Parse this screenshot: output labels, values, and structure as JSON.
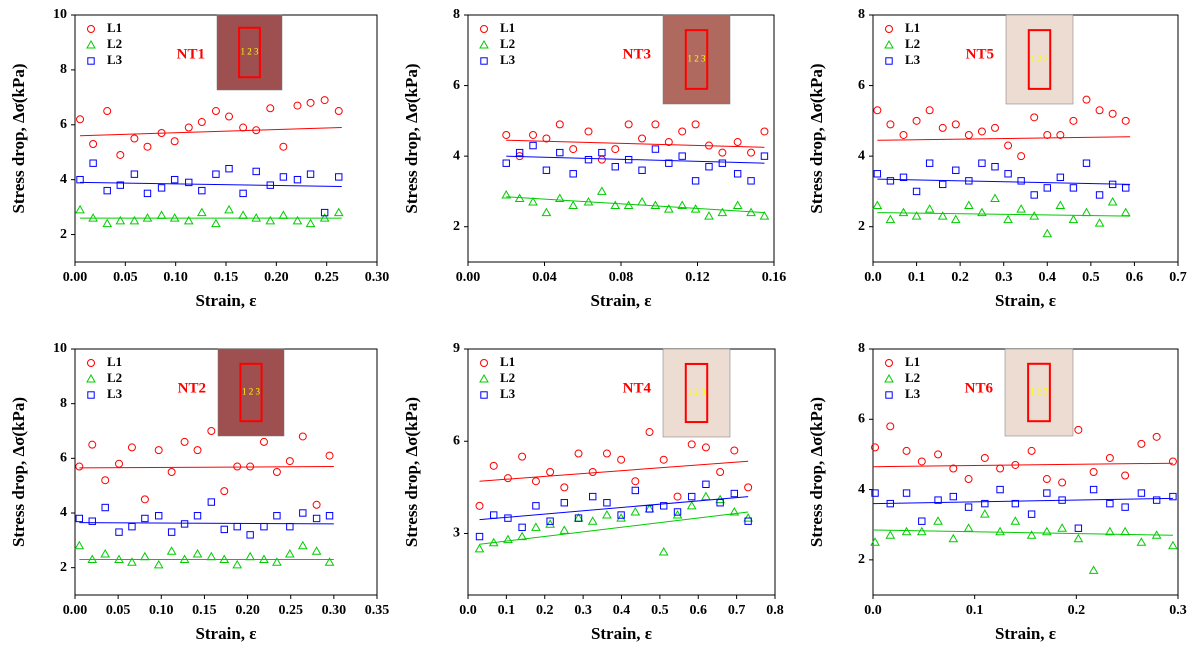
{
  "chart_data": [
    {
      "type": "scatter",
      "annotation": "NT1",
      "inset_label": "1 2 3",
      "inset_color": "#9e4f4f",
      "x_label": "Strain, ε",
      "y_label": "Stress drop, Δσ(kPa)",
      "xlim": [
        0,
        0.3
      ],
      "ylim": [
        1,
        10
      ],
      "xticks": [
        {
          "value": 0,
          "label": "0.00"
        },
        {
          "value": 0.05,
          "label": "0.05"
        },
        {
          "value": 0.1,
          "label": "0.10"
        },
        {
          "value": 0.15,
          "label": "0.15"
        },
        {
          "value": 0.2,
          "label": "0.20"
        },
        {
          "value": 0.25,
          "label": "0.25"
        },
        {
          "value": 0.3,
          "label": "0.30"
        }
      ],
      "yticks": [
        2,
        4,
        6,
        8,
        10
      ],
      "x": [
        0.005,
        0.018,
        0.032,
        0.045,
        0.059,
        0.072,
        0.086,
        0.099,
        0.113,
        0.126,
        0.14,
        0.153,
        0.167,
        0.18,
        0.194,
        0.207,
        0.221,
        0.234,
        0.248,
        0.262
      ],
      "fit_x": [
        0.005,
        0.265
      ],
      "series": [
        {
          "name": "L1",
          "color": "#ff0000",
          "marker": "circle",
          "values": [
            6.2,
            5.3,
            6.5,
            4.9,
            5.5,
            5.2,
            5.7,
            5.4,
            5.9,
            6.1,
            6.5,
            6.3,
            5.9,
            5.8,
            6.6,
            5.2,
            6.7,
            6.8,
            6.9,
            6.5
          ],
          "fit_values": [
            5.6,
            5.9
          ]
        },
        {
          "name": "L2",
          "color": "#00cc00",
          "marker": "triangle",
          "values": [
            2.9,
            2.6,
            2.4,
            2.5,
            2.5,
            2.6,
            2.7,
            2.6,
            2.5,
            2.8,
            2.4,
            2.9,
            2.7,
            2.6,
            2.5,
            2.7,
            2.5,
            2.4,
            2.6,
            2.8
          ],
          "fit_values": [
            2.6,
            2.6
          ]
        },
        {
          "name": "L3",
          "color": "#0000ff",
          "marker": "square",
          "values": [
            4.0,
            4.6,
            3.6,
            3.8,
            4.2,
            3.5,
            3.7,
            4.0,
            3.9,
            3.6,
            4.2,
            4.4,
            3.5,
            4.3,
            3.8,
            4.1,
            4.0,
            4.2,
            2.8,
            4.1
          ],
          "fit_values": [
            3.9,
            3.75
          ]
        }
      ]
    },
    {
      "type": "scatter",
      "annotation": "NT3",
      "inset_label": "1 2 3",
      "inset_color": "#b0695f",
      "x_label": "Strain, ε",
      "y_label": "Stress drop, Δσ(kPa)",
      "xlim": [
        0,
        0.16
      ],
      "ylim": [
        1,
        8
      ],
      "xticks": [
        {
          "value": 0,
          "label": "0.00"
        },
        {
          "value": 0.04,
          "label": "0.04"
        },
        {
          "value": 0.08,
          "label": "0.08"
        },
        {
          "value": 0.12,
          "label": "0.12"
        },
        {
          "value": 0.16,
          "label": "0.16"
        }
      ],
      "yticks": [
        2,
        4,
        6,
        8
      ],
      "x": [
        0.02,
        0.027,
        0.034,
        0.041,
        0.048,
        0.055,
        0.063,
        0.07,
        0.077,
        0.084,
        0.091,
        0.098,
        0.105,
        0.112,
        0.119,
        0.126,
        0.133,
        0.141,
        0.148,
        0.155
      ],
      "fit_x": [
        0.02,
        0.155
      ],
      "series": [
        {
          "name": "L1",
          "color": "#ff0000",
          "marker": "circle",
          "values": [
            4.6,
            4.0,
            4.6,
            4.5,
            4.9,
            4.2,
            4.7,
            3.9,
            4.2,
            4.9,
            4.5,
            4.9,
            4.4,
            4.7,
            4.9,
            4.3,
            4.1,
            4.4,
            4.1,
            4.7
          ],
          "fit_values": [
            4.45,
            4.25
          ]
        },
        {
          "name": "L2",
          "color": "#00cc00",
          "marker": "triangle",
          "values": [
            2.9,
            2.8,
            2.7,
            2.4,
            2.8,
            2.6,
            2.7,
            3.0,
            2.6,
            2.6,
            2.7,
            2.6,
            2.5,
            2.6,
            2.5,
            2.3,
            2.4,
            2.6,
            2.4,
            2.3
          ],
          "fit_values": [
            2.85,
            2.4
          ]
        },
        {
          "name": "L3",
          "color": "#0000ff",
          "marker": "square",
          "values": [
            3.8,
            4.1,
            4.3,
            3.6,
            4.1,
            3.5,
            3.9,
            4.1,
            3.7,
            3.9,
            3.6,
            4.2,
            3.8,
            4.0,
            3.3,
            3.7,
            3.8,
            3.5,
            3.3,
            4.0
          ],
          "fit_values": [
            4.0,
            3.8
          ]
        }
      ]
    },
    {
      "type": "scatter",
      "annotation": "NT5",
      "inset_label": "1 2 3",
      "inset_color": "#ecdcd2",
      "x_label": "Strain, ε",
      "y_label": "Stress drop, Δσ(kPa)",
      "xlim": [
        0,
        0.7
      ],
      "ylim": [
        1,
        8
      ],
      "xticks": [
        {
          "value": 0,
          "label": "0.0"
        },
        0.1,
        0.2,
        0.3,
        0.4,
        0.5,
        0.6,
        0.7
      ],
      "yticks": [
        2,
        4,
        6,
        8
      ],
      "x": [
        0.01,
        0.04,
        0.07,
        0.1,
        0.13,
        0.16,
        0.19,
        0.22,
        0.25,
        0.28,
        0.31,
        0.34,
        0.37,
        0.4,
        0.43,
        0.46,
        0.49,
        0.52,
        0.55,
        0.58
      ],
      "fit_x": [
        0.01,
        0.59
      ],
      "series": [
        {
          "name": "L1",
          "color": "#ff0000",
          "marker": "circle",
          "values": [
            5.3,
            4.9,
            4.6,
            5.0,
            5.3,
            4.8,
            4.9,
            4.6,
            4.7,
            4.8,
            4.3,
            4.0,
            5.1,
            4.6,
            4.6,
            5.0,
            5.6,
            5.3,
            5.2,
            5.0
          ],
          "fit_values": [
            4.45,
            4.55
          ]
        },
        {
          "name": "L2",
          "color": "#00cc00",
          "marker": "triangle",
          "values": [
            2.6,
            2.2,
            2.4,
            2.3,
            2.5,
            2.3,
            2.2,
            2.6,
            2.4,
            2.8,
            2.2,
            2.5,
            2.3,
            1.8,
            2.6,
            2.2,
            2.4,
            2.1,
            2.7,
            2.4
          ],
          "fit_values": [
            2.4,
            2.3
          ]
        },
        {
          "name": "L3",
          "color": "#0000ff",
          "marker": "square",
          "values": [
            3.5,
            3.3,
            3.4,
            3.0,
            3.8,
            3.2,
            3.6,
            3.3,
            3.8,
            3.7,
            3.5,
            3.3,
            2.9,
            3.1,
            3.4,
            3.1,
            3.8,
            2.9,
            3.2,
            3.1
          ],
          "fit_values": [
            3.35,
            3.2
          ]
        }
      ]
    },
    {
      "type": "scatter",
      "annotation": "NT2",
      "inset_label": "1 2 3",
      "inset_color": "#9e4f4f",
      "x_label": "Strain, ε",
      "y_label": "Stress drop, Δσ(kPa)",
      "xlim": [
        0,
        0.35
      ],
      "ylim": [
        1,
        10
      ],
      "xticks": [
        {
          "value": 0,
          "label": "0.00"
        },
        {
          "value": 0.05,
          "label": "0.05"
        },
        {
          "value": 0.1,
          "label": "0.10"
        },
        {
          "value": 0.15,
          "label": "0.15"
        },
        {
          "value": 0.2,
          "label": "0.20"
        },
        {
          "value": 0.25,
          "label": "0.25"
        },
        {
          "value": 0.3,
          "label": "0.30"
        },
        {
          "value": 0.35,
          "label": "0.35"
        }
      ],
      "yticks": [
        2,
        4,
        6,
        8,
        10
      ],
      "x": [
        0.005,
        0.02,
        0.035,
        0.051,
        0.066,
        0.081,
        0.097,
        0.112,
        0.127,
        0.142,
        0.158,
        0.173,
        0.188,
        0.203,
        0.219,
        0.234,
        0.249,
        0.264,
        0.28,
        0.295
      ],
      "fit_x": [
        0.005,
        0.3
      ],
      "series": [
        {
          "name": "L1",
          "color": "#ff0000",
          "marker": "circle",
          "values": [
            5.7,
            6.5,
            5.2,
            5.8,
            6.4,
            4.5,
            6.3,
            5.5,
            6.6,
            6.3,
            7.0,
            4.8,
            5.7,
            5.7,
            6.6,
            5.5,
            5.9,
            6.8,
            4.3,
            6.1
          ],
          "fit_values": [
            5.65,
            5.7
          ]
        },
        {
          "name": "L2",
          "color": "#00cc00",
          "marker": "triangle",
          "values": [
            2.8,
            2.3,
            2.5,
            2.3,
            2.2,
            2.4,
            2.1,
            2.6,
            2.3,
            2.5,
            2.4,
            2.3,
            2.1,
            2.4,
            2.3,
            2.2,
            2.5,
            2.8,
            2.6,
            2.2
          ],
          "fit_values": [
            2.3,
            2.3
          ]
        },
        {
          "name": "L3",
          "color": "#0000ff",
          "marker": "square",
          "values": [
            3.8,
            3.7,
            4.2,
            3.3,
            3.5,
            3.8,
            3.9,
            3.3,
            3.6,
            3.9,
            4.4,
            3.4,
            3.5,
            3.2,
            3.5,
            3.9,
            3.5,
            4.0,
            3.8,
            3.9
          ],
          "fit_values": [
            3.65,
            3.6
          ]
        }
      ]
    },
    {
      "type": "scatter",
      "annotation": "NT4",
      "inset_label": "1 2 3",
      "inset_color": "#ecdcd2",
      "x_label": "Strain, ε",
      "y_label": "Stress drop, Δσ(kPa)",
      "xlim": [
        0,
        0.8
      ],
      "ylim": [
        1,
        9
      ],
      "xticks": [
        {
          "value": 0,
          "label": "0.0"
        },
        0.1,
        0.2,
        0.3,
        0.4,
        0.5,
        0.6,
        0.7,
        0.8
      ],
      "yticks": [
        3,
        6,
        9
      ],
      "x": [
        0.03,
        0.067,
        0.104,
        0.141,
        0.177,
        0.214,
        0.251,
        0.288,
        0.325,
        0.362,
        0.399,
        0.436,
        0.473,
        0.51,
        0.546,
        0.583,
        0.62,
        0.657,
        0.694,
        0.73
      ],
      "fit_x": [
        0.03,
        0.73
      ],
      "series": [
        {
          "name": "L1",
          "color": "#ff0000",
          "marker": "circle",
          "values": [
            3.9,
            5.2,
            4.8,
            5.5,
            4.7,
            5.0,
            4.5,
            5.6,
            5.0,
            5.6,
            5.4,
            4.7,
            6.3,
            5.4,
            4.2,
            5.9,
            5.8,
            5.0,
            5.7,
            4.5
          ],
          "fit_values": [
            4.7,
            5.35
          ]
        },
        {
          "name": "L2",
          "color": "#00cc00",
          "marker": "triangle",
          "values": [
            2.5,
            2.7,
            2.8,
            2.9,
            3.2,
            3.3,
            3.1,
            3.5,
            3.4,
            3.6,
            3.5,
            3.7,
            3.8,
            2.4,
            3.6,
            3.9,
            4.2,
            4.1,
            3.7,
            3.5
          ],
          "fit_values": [
            2.65,
            3.7
          ]
        },
        {
          "name": "L3",
          "color": "#0000ff",
          "marker": "square",
          "values": [
            2.9,
            3.6,
            3.5,
            3.2,
            3.9,
            3.4,
            4.0,
            3.5,
            4.2,
            4.0,
            3.6,
            4.4,
            3.8,
            3.9,
            3.7,
            4.2,
            4.6,
            4.0,
            4.3,
            3.4
          ],
          "fit_values": [
            3.45,
            4.2
          ]
        }
      ]
    },
    {
      "type": "scatter",
      "annotation": "NT6",
      "inset_label": "1 2 3",
      "inset_color": "#ecdcd2",
      "x_label": "Strain, ε",
      "y_label": "Stress drop, Δσ(kPa)",
      "xlim": [
        0,
        0.3
      ],
      "ylim": [
        1,
        8
      ],
      "xticks": [
        {
          "value": 0,
          "label": "0.0"
        },
        0.1,
        0.2,
        0.3
      ],
      "yticks": [
        2,
        4,
        6,
        8
      ],
      "x": [
        0.002,
        0.017,
        0.033,
        0.048,
        0.064,
        0.079,
        0.094,
        0.11,
        0.125,
        0.14,
        0.156,
        0.171,
        0.186,
        0.202,
        0.217,
        0.233,
        0.248,
        0.264,
        0.279,
        0.295
      ],
      "fit_x": [
        0,
        0.295
      ],
      "series": [
        {
          "name": "L1",
          "color": "#ff0000",
          "marker": "circle",
          "values": [
            5.2,
            5.8,
            5.1,
            4.8,
            5.0,
            4.6,
            4.3,
            4.9,
            4.6,
            4.7,
            5.1,
            4.3,
            4.2,
            5.7,
            4.5,
            4.9,
            4.4,
            5.3,
            5.5,
            4.8
          ],
          "fit_values": [
            4.65,
            4.75
          ]
        },
        {
          "name": "L2",
          "color": "#00cc00",
          "marker": "triangle",
          "values": [
            2.5,
            2.7,
            2.8,
            2.8,
            3.1,
            2.6,
            2.9,
            3.3,
            2.8,
            3.1,
            2.7,
            2.8,
            2.9,
            2.6,
            1.7,
            2.8,
            2.8,
            2.5,
            2.7,
            2.4
          ],
          "fit_values": [
            2.85,
            2.7
          ]
        },
        {
          "name": "L3",
          "color": "#0000ff",
          "marker": "square",
          "values": [
            3.9,
            3.6,
            3.9,
            3.1,
            3.7,
            3.8,
            3.5,
            3.6,
            4.0,
            3.6,
            3.3,
            3.9,
            3.7,
            2.9,
            4.0,
            3.6,
            3.5,
            3.9,
            3.7,
            3.8
          ],
          "fit_values": [
            3.6,
            3.75
          ]
        }
      ]
    }
  ]
}
